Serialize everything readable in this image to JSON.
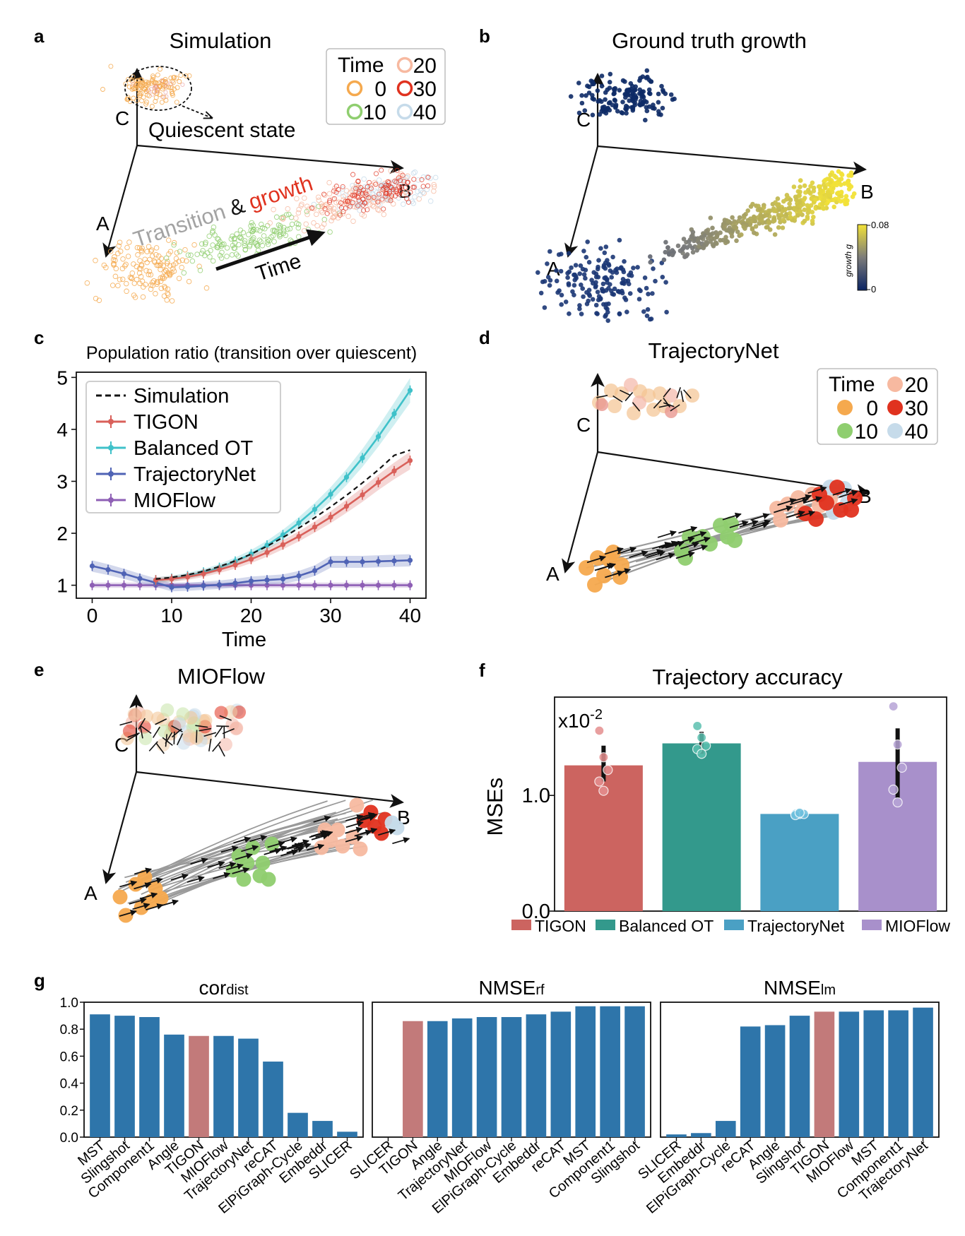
{
  "panels": {
    "a": {
      "letter": "a",
      "title": "Simulation",
      "quiescent": "Quiescent state",
      "transition": "Transition",
      "amp": "&",
      "growth": "growth",
      "time_arrow": "Time",
      "axis_labels": [
        "A",
        "B",
        "C"
      ],
      "legend_title": "Time",
      "legend_items": [
        {
          "label": "0",
          "color": "#f5a94e"
        },
        {
          "label": "10",
          "color": "#8fce6f"
        },
        {
          "label": "20",
          "color": "#f7b9a0"
        },
        {
          "label": "30",
          "color": "#e0321f"
        },
        {
          "label": "40",
          "color": "#c6dbea"
        }
      ]
    },
    "b": {
      "letter": "b",
      "title": "Ground truth growth",
      "axis_labels": [
        "A",
        "B",
        "C"
      ],
      "colorbar_label": "growth g",
      "colorbar_max": "0.08",
      "colorbar_min": "0"
    },
    "d": {
      "letter": "d",
      "title": "TrajectoryNet",
      "axis_labels": [
        "A",
        "B",
        "C"
      ],
      "legend_title": "Time",
      "legend_items": [
        {
          "label": "0",
          "color": "#f5a94e"
        },
        {
          "label": "10",
          "color": "#8fce6f"
        },
        {
          "label": "20",
          "color": "#f7b9a0"
        },
        {
          "label": "30",
          "color": "#e0321f"
        },
        {
          "label": "40",
          "color": "#c6dbea"
        }
      ]
    },
    "e": {
      "letter": "e",
      "title": "MIOFlow",
      "axis_labels": [
        "A",
        "B",
        "C"
      ]
    },
    "g": {
      "letter": "g"
    }
  },
  "chart_data": [
    {
      "id": "c",
      "letter": "c",
      "type": "line",
      "title": "Population ratio (transition over quiescent)",
      "xlabel": "Time",
      "ylabel": "",
      "xlim": [
        -2,
        42
      ],
      "ylim": [
        0.75,
        5.1
      ],
      "xticks": [
        0,
        10,
        20,
        30,
        40
      ],
      "yticks": [
        1,
        2,
        3,
        4,
        5
      ],
      "legend_position": "upper-left",
      "series": [
        {
          "name": "Simulation",
          "color": "#111111",
          "dashed": true,
          "x": [
            8,
            10,
            12,
            14,
            16,
            18,
            20,
            22,
            24,
            26,
            28,
            30,
            32,
            34,
            36,
            38,
            40
          ],
          "y": [
            1.12,
            1.15,
            1.2,
            1.27,
            1.36,
            1.47,
            1.6,
            1.75,
            1.92,
            2.1,
            2.3,
            2.51,
            2.73,
            2.97,
            3.22,
            3.5,
            3.6
          ]
        },
        {
          "name": "TIGON",
          "color": "#d9605a",
          "x": [
            8,
            10,
            12,
            14,
            16,
            18,
            20,
            22,
            24,
            26,
            28,
            30,
            32,
            34,
            36,
            38,
            40
          ],
          "y": [
            1.1,
            1.12,
            1.16,
            1.22,
            1.3,
            1.39,
            1.5,
            1.63,
            1.78,
            1.94,
            2.12,
            2.31,
            2.52,
            2.74,
            2.98,
            3.2,
            3.4
          ]
        },
        {
          "name": "Balanced OT",
          "color": "#3fc1c9",
          "x": [
            8,
            10,
            12,
            14,
            16,
            18,
            20,
            22,
            24,
            26,
            28,
            30,
            32,
            34,
            36,
            38,
            40
          ],
          "y": [
            1.1,
            1.13,
            1.18,
            1.25,
            1.34,
            1.46,
            1.6,
            1.77,
            1.97,
            2.2,
            2.46,
            2.75,
            3.08,
            3.45,
            3.86,
            4.3,
            4.75
          ]
        },
        {
          "name": "TrajectoryNet",
          "color": "#4f63b5",
          "x": [
            0,
            2,
            4,
            6,
            8,
            10,
            12,
            14,
            16,
            18,
            20,
            22,
            24,
            26,
            28,
            30,
            32,
            34,
            36,
            38,
            40
          ],
          "y": [
            1.37,
            1.3,
            1.22,
            1.13,
            1.05,
            0.96,
            0.97,
            0.99,
            1.01,
            1.04,
            1.08,
            1.1,
            1.12,
            1.18,
            1.28,
            1.45,
            1.45,
            1.45,
            1.46,
            1.47,
            1.48
          ]
        },
        {
          "name": "MIOFlow",
          "color": "#8e5fb5",
          "x": [
            0,
            2,
            4,
            6,
            8,
            10,
            12,
            14,
            16,
            18,
            20,
            22,
            24,
            26,
            28,
            30,
            32,
            34,
            36,
            38,
            40
          ],
          "y": [
            1,
            1,
            1,
            1,
            1,
            1,
            1,
            1,
            1,
            1,
            1,
            1,
            1,
            1,
            1,
            1,
            1,
            1,
            1,
            1,
            1
          ]
        }
      ]
    },
    {
      "id": "f",
      "letter": "f",
      "type": "bar",
      "title": "Trajectory accuracy",
      "ylabel": "MSEs",
      "multiplier": "x10",
      "multiplier_exp": "-2",
      "ylim": [
        0,
        1.85
      ],
      "yticks": [
        "0.0",
        "1.0"
      ],
      "categories": [
        "TIGON",
        "Balanced OT",
        "TrajectoryNet",
        "MIOFlow"
      ],
      "values": [
        1.26,
        1.45,
        0.84,
        1.29
      ],
      "colors": [
        "#cc6460",
        "#33998c",
        "#4aa0c4",
        "#a890cb"
      ],
      "dot_colors": [
        "#e58f8f",
        "#5cc0b0",
        "#6ec0de",
        "#b7a4d6"
      ],
      "error": [
        [
          1.12,
          1.43
        ],
        [
          1.36,
          1.55
        ],
        [
          0.82,
          0.86
        ],
        [
          0.98,
          1.58
        ]
      ],
      "points": [
        [
          1.56,
          1.33,
          1.22,
          1.12,
          1.04
        ],
        [
          1.6,
          1.5,
          1.43,
          1.4,
          1.36
        ],
        [
          0.84,
          0.84,
          0.84,
          0.83,
          0.85
        ],
        [
          1.77,
          1.44,
          1.24,
          1.05,
          0.94
        ]
      ]
    },
    {
      "id": "g1",
      "type": "bar",
      "title_main": "cor",
      "title_sub": "dist",
      "ylim": [
        0,
        1.0
      ],
      "yticks": [
        "0.0",
        "0.2",
        "0.4",
        "0.6",
        "0.8",
        "1.0"
      ],
      "categories": [
        "MST",
        "Slingshot",
        "Component1",
        "Angle",
        "TIGON",
        "MIOFlow",
        "TrajectoryNet",
        "reCAT",
        "ElPiGraph-Cycle",
        "Embeddr",
        "SLICER"
      ],
      "values": [
        0.91,
        0.9,
        0.89,
        0.76,
        0.75,
        0.75,
        0.73,
        0.56,
        0.18,
        0.12,
        0.04
      ],
      "highlight": "TIGON"
    },
    {
      "id": "g2",
      "type": "bar",
      "title_main": "NMSE",
      "title_sub": "rf",
      "ylim": [
        0,
        1.0
      ],
      "categories": [
        "SLICER",
        "TIGON",
        "Angle",
        "TrajectoryNet",
        "MIOFlow",
        "ElPiGraph-Cycle",
        "Embeddr",
        "reCAT",
        "MST",
        "Component1",
        "Slingshot"
      ],
      "values": [
        0.0,
        0.86,
        0.86,
        0.88,
        0.89,
        0.89,
        0.91,
        0.93,
        0.97,
        0.97,
        0.97
      ],
      "highlight": "TIGON"
    },
    {
      "id": "g3",
      "type": "bar",
      "title_main": "NMSE",
      "title_sub": "lm",
      "ylim": [
        0,
        1.0
      ],
      "categories": [
        "SLICER",
        "Embeddr",
        "ElPiGraph-Cycle",
        "reCAT",
        "Angle",
        "Slingshot",
        "TIGON",
        "MIOFlow",
        "MST",
        "Component1",
        "TrajectoryNet"
      ],
      "values": [
        0.02,
        0.03,
        0.12,
        0.82,
        0.83,
        0.9,
        0.93,
        0.93,
        0.94,
        0.94,
        0.96
      ],
      "highlight": "TIGON"
    }
  ]
}
